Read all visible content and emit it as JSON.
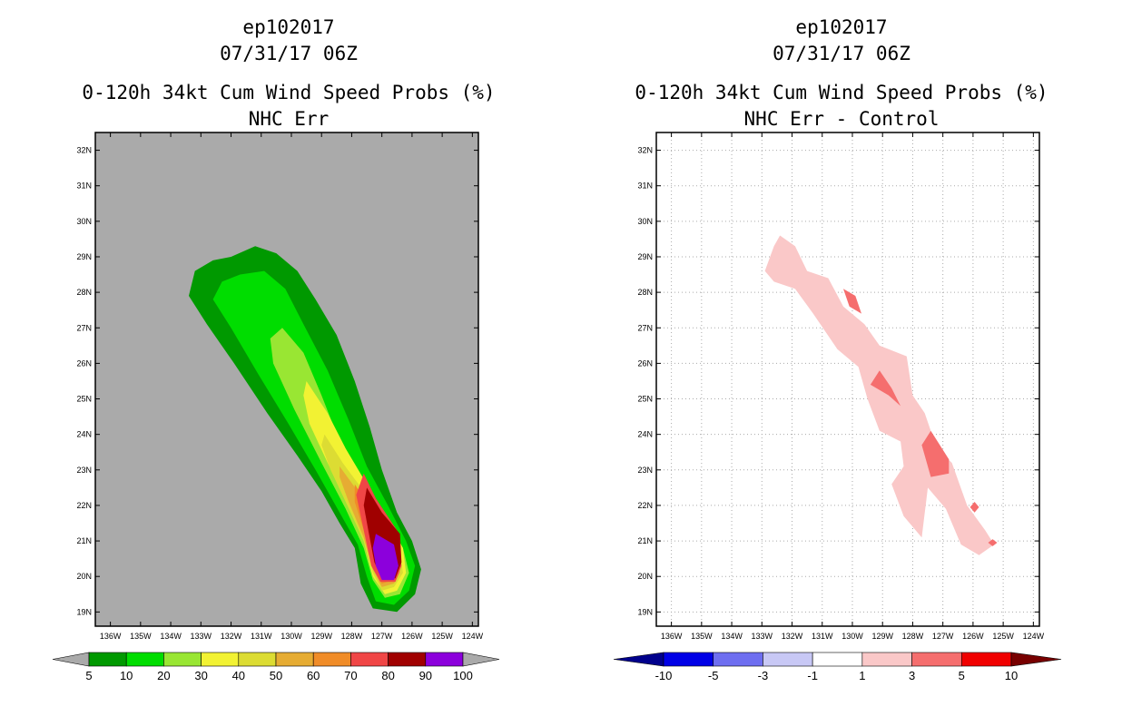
{
  "left_panel": {
    "storm_id": "ep102017",
    "datetime": "07/31/17 06Z",
    "product": "0-120h 34kt Cum Wind Speed Probs (%)",
    "subtitle": "NHC Err"
  },
  "right_panel": {
    "storm_id": "ep102017",
    "datetime": "07/31/17 06Z",
    "product": "0-120h 34kt Cum Wind Speed Probs (%)",
    "subtitle": "NHC Err - Control"
  },
  "chart_data": [
    {
      "type": "heatmap",
      "title": "0-120h 34kt Cum Wind Speed Probs (%)",
      "subtitle": "NHC Err",
      "background": "#aaaaaa",
      "xlim_lon_w": [
        136.5,
        123.8
      ],
      "ylim_lat_n": [
        18.6,
        32.5
      ],
      "x_ticks": [
        "136W",
        "135W",
        "134W",
        "133W",
        "132W",
        "131W",
        "130W",
        "129W",
        "128W",
        "127W",
        "126W",
        "125W",
        "124W"
      ],
      "y_ticks": [
        "19N",
        "20N",
        "21N",
        "22N",
        "23N",
        "24N",
        "25N",
        "26N",
        "27N",
        "28N",
        "29N",
        "30N",
        "31N",
        "32N"
      ],
      "grid": false,
      "colorbar": {
        "levels": [
          "5",
          "10",
          "20",
          "30",
          "40",
          "50",
          "60",
          "70",
          "80",
          "90",
          "100"
        ],
        "colors": [
          "#009900",
          "#00dd00",
          "#99e633",
          "#f2f233",
          "#dcdc33",
          "#e6ac33",
          "#f08c28",
          "#f04646",
          "#a00000",
          "#8c00dc"
        ],
        "low_end": "#aaaaaa",
        "high_end": "#aaaaaa"
      },
      "contours": [
        {
          "level": 5,
          "color": "#009900",
          "polygon": [
            [
              132.0,
              29.0
            ],
            [
              131.2,
              29.3
            ],
            [
              130.5,
              29.1
            ],
            [
              129.8,
              28.6
            ],
            [
              129.2,
              27.8
            ],
            [
              128.5,
              26.8
            ],
            [
              127.9,
              25.5
            ],
            [
              127.4,
              24.2
            ],
            [
              127.0,
              23.0
            ],
            [
              126.5,
              21.8
            ],
            [
              126.0,
              21.0
            ],
            [
              125.7,
              20.2
            ],
            [
              125.9,
              19.5
            ],
            [
              126.5,
              19.0
            ],
            [
              127.3,
              19.1
            ],
            [
              127.7,
              19.8
            ],
            [
              127.9,
              20.8
            ],
            [
              128.4,
              21.5
            ],
            [
              129.0,
              22.4
            ],
            [
              129.8,
              23.4
            ],
            [
              130.8,
              24.6
            ],
            [
              131.9,
              26.0
            ],
            [
              132.8,
              27.1
            ],
            [
              133.4,
              27.9
            ],
            [
              133.2,
              28.6
            ],
            [
              132.6,
              28.9
            ]
          ]
        },
        {
          "level": 10,
          "color": "#00dd00",
          "polygon": [
            [
              131.7,
              28.5
            ],
            [
              130.9,
              28.6
            ],
            [
              130.2,
              28.1
            ],
            [
              129.6,
              27.1
            ],
            [
              128.8,
              25.8
            ],
            [
              128.1,
              24.4
            ],
            [
              127.5,
              23.1
            ],
            [
              126.8,
              22.0
            ],
            [
              126.2,
              21.0
            ],
            [
              125.9,
              20.3
            ],
            [
              126.1,
              19.6
            ],
            [
              126.6,
              19.2
            ],
            [
              127.2,
              19.3
            ],
            [
              127.5,
              20.0
            ],
            [
              127.8,
              20.9
            ],
            [
              128.4,
              21.8
            ],
            [
              129.2,
              23.0
            ],
            [
              130.1,
              24.3
            ],
            [
              131.1,
              25.7
            ],
            [
              132.0,
              27.0
            ],
            [
              132.6,
              27.8
            ],
            [
              132.3,
              28.3
            ]
          ]
        },
        {
          "level": 20,
          "color": "#99e633",
          "polygon": [
            [
              130.3,
              27.0
            ],
            [
              129.6,
              26.3
            ],
            [
              129.0,
              25.1
            ],
            [
              128.4,
              23.8
            ],
            [
              127.6,
              22.5
            ],
            [
              126.9,
              21.5
            ],
            [
              126.3,
              20.8
            ],
            [
              126.1,
              20.1
            ],
            [
              126.4,
              19.5
            ],
            [
              126.9,
              19.4
            ],
            [
              127.3,
              19.9
            ],
            [
              127.6,
              20.8
            ],
            [
              128.2,
              21.9
            ],
            [
              129.0,
              23.2
            ],
            [
              129.9,
              24.7
            ],
            [
              130.6,
              26.0
            ],
            [
              130.7,
              26.7
            ]
          ]
        },
        {
          "level": 30,
          "color": "#f2f233",
          "polygon": [
            [
              129.5,
              25.5
            ],
            [
              128.8,
              24.6
            ],
            [
              128.2,
              23.6
            ],
            [
              127.5,
              22.6
            ],
            [
              126.8,
              21.6
            ],
            [
              126.3,
              20.8
            ],
            [
              126.2,
              20.1
            ],
            [
              126.5,
              19.6
            ],
            [
              126.9,
              19.5
            ],
            [
              127.3,
              20.0
            ],
            [
              127.6,
              21.0
            ],
            [
              128.1,
              22.0
            ],
            [
              128.8,
              23.2
            ],
            [
              129.4,
              24.3
            ],
            [
              129.6,
              25.1
            ]
          ]
        },
        {
          "level": 40,
          "color": "#dcdc33",
          "polygon": [
            [
              128.9,
              24.0
            ],
            [
              128.3,
              23.2
            ],
            [
              127.6,
              22.4
            ],
            [
              126.9,
              21.4
            ],
            [
              126.4,
              20.7
            ],
            [
              126.3,
              20.1
            ],
            [
              126.6,
              19.7
            ],
            [
              127.0,
              19.6
            ],
            [
              127.3,
              20.1
            ],
            [
              127.6,
              21.0
            ],
            [
              128.2,
              22.1
            ],
            [
              128.7,
              23.0
            ],
            [
              129.0,
              23.7
            ]
          ]
        },
        {
          "level": 50,
          "color": "#e6ac33",
          "polygon": [
            [
              128.4,
              23.1
            ],
            [
              127.8,
              22.4
            ],
            [
              127.1,
              21.5
            ],
            [
              126.5,
              20.8
            ],
            [
              126.4,
              20.1
            ],
            [
              126.6,
              19.8
            ],
            [
              127.0,
              19.7
            ],
            [
              127.3,
              20.2
            ],
            [
              127.6,
              21.1
            ],
            [
              128.1,
              22.1
            ],
            [
              128.4,
              22.8
            ]
          ]
        },
        {
          "level": 60,
          "color": "#f08c28",
          "polygon": [
            [
              127.9,
              22.6
            ],
            [
              127.3,
              21.8
            ],
            [
              126.6,
              21.0
            ],
            [
              126.4,
              20.3
            ],
            [
              126.6,
              19.9
            ],
            [
              127.0,
              19.8
            ],
            [
              127.3,
              20.3
            ],
            [
              127.6,
              21.3
            ],
            [
              127.9,
              22.1
            ]
          ]
        },
        {
          "level": 70,
          "color": "#f04646",
          "polygon": [
            [
              127.6,
              22.9
            ],
            [
              127.2,
              22.2
            ],
            [
              126.5,
              21.3
            ],
            [
              126.35,
              20.3
            ],
            [
              126.55,
              19.85
            ],
            [
              127.05,
              19.85
            ],
            [
              127.35,
              20.3
            ],
            [
              127.6,
              21.3
            ],
            [
              127.85,
              22.3
            ]
          ]
        },
        {
          "level": 80,
          "color": "#a00000",
          "polygon": [
            [
              127.5,
              22.5
            ],
            [
              127.0,
              21.8
            ],
            [
              126.4,
              21.2
            ],
            [
              126.35,
              20.4
            ],
            [
              126.55,
              19.95
            ],
            [
              127.0,
              19.95
            ],
            [
              127.25,
              20.4
            ],
            [
              127.45,
              21.3
            ],
            [
              127.6,
              22.0
            ]
          ]
        },
        {
          "level": 90,
          "color": "#8c00dc",
          "polygon": [
            [
              127.2,
              21.2
            ],
            [
              126.6,
              20.9
            ],
            [
              126.45,
              20.3
            ],
            [
              126.6,
              19.9
            ],
            [
              127.0,
              19.9
            ],
            [
              127.2,
              20.3
            ],
            [
              127.3,
              20.8
            ]
          ]
        }
      ]
    },
    {
      "type": "heatmap",
      "title": "0-120h 34kt Cum Wind Speed Probs (%)",
      "subtitle": "NHC Err - Control",
      "background": "#ffffff",
      "xlim_lon_w": [
        136.5,
        123.8
      ],
      "ylim_lat_n": [
        18.6,
        32.5
      ],
      "x_ticks": [
        "136W",
        "135W",
        "134W",
        "133W",
        "132W",
        "131W",
        "130W",
        "129W",
        "128W",
        "127W",
        "126W",
        "125W",
        "124W"
      ],
      "y_ticks": [
        "19N",
        "20N",
        "21N",
        "22N",
        "23N",
        "24N",
        "25N",
        "26N",
        "27N",
        "28N",
        "29N",
        "30N",
        "31N",
        "32N"
      ],
      "grid": true,
      "colorbar": {
        "levels": [
          "-10",
          "-5",
          "-3",
          "-1",
          "1",
          "3",
          "5",
          "10"
        ],
        "colors": [
          "#0000e6",
          "#6e6ef0",
          "#c8c8f5",
          "#ffffff",
          "#fac8c8",
          "#f56e6e",
          "#f00000"
        ],
        "low_end": "#00008c",
        "high_end": "#780000"
      },
      "contours": [
        {
          "level": 1,
          "color": "#fac8c8",
          "polygon": [
            [
              132.4,
              29.6
            ],
            [
              131.9,
              29.3
            ],
            [
              131.5,
              28.6
            ],
            [
              130.8,
              28.4
            ],
            [
              130.3,
              27.6
            ],
            [
              129.6,
              27.1
            ],
            [
              129.1,
              26.5
            ],
            [
              128.2,
              26.2
            ],
            [
              128.0,
              25.1
            ],
            [
              127.6,
              24.6
            ],
            [
              127.2,
              23.6
            ],
            [
              126.7,
              23.2
            ],
            [
              126.2,
              22.0
            ],
            [
              125.6,
              21.3
            ],
            [
              125.3,
              20.9
            ],
            [
              125.8,
              20.6
            ],
            [
              126.4,
              20.9
            ],
            [
              126.9,
              21.9
            ],
            [
              127.5,
              22.5
            ],
            [
              127.7,
              21.1
            ],
            [
              128.3,
              21.7
            ],
            [
              128.7,
              22.6
            ],
            [
              128.3,
              23.1
            ],
            [
              128.4,
              23.8
            ],
            [
              129.1,
              24.1
            ],
            [
              129.5,
              25.0
            ],
            [
              129.8,
              25.9
            ],
            [
              130.5,
              26.4
            ],
            [
              131.3,
              27.4
            ],
            [
              131.9,
              28.1
            ],
            [
              132.6,
              28.3
            ],
            [
              132.9,
              28.6
            ],
            [
              132.6,
              29.3
            ]
          ]
        },
        {
          "level": 3,
          "color": "#f56e6e",
          "polygon": [
            [
              130.3,
              28.1
            ],
            [
              129.9,
              27.9
            ],
            [
              129.7,
              27.4
            ],
            [
              130.1,
              27.6
            ]
          ]
        },
        {
          "level": 3,
          "color": "#f56e6e",
          "polygon": [
            [
              129.1,
              25.8
            ],
            [
              128.7,
              25.3
            ],
            [
              128.4,
              24.8
            ],
            [
              128.8,
              25.1
            ],
            [
              129.4,
              25.4
            ]
          ]
        },
        {
          "level": 3,
          "color": "#f56e6e",
          "polygon": [
            [
              127.4,
              24.1
            ],
            [
              126.8,
              23.3
            ],
            [
              126.8,
              22.9
            ],
            [
              127.4,
              22.8
            ],
            [
              127.7,
              23.7
            ]
          ]
        },
        {
          "level": 3,
          "color": "#f56e6e",
          "polygon": [
            [
              125.95,
              22.1
            ],
            [
              125.8,
              21.95
            ],
            [
              125.95,
              21.8
            ],
            [
              126.1,
              21.95
            ]
          ]
        },
        {
          "level": 3,
          "color": "#f56e6e",
          "polygon": [
            [
              125.35,
              21.05
            ],
            [
              125.2,
              20.95
            ],
            [
              125.35,
              20.85
            ],
            [
              125.5,
              20.95
            ]
          ]
        }
      ]
    }
  ]
}
